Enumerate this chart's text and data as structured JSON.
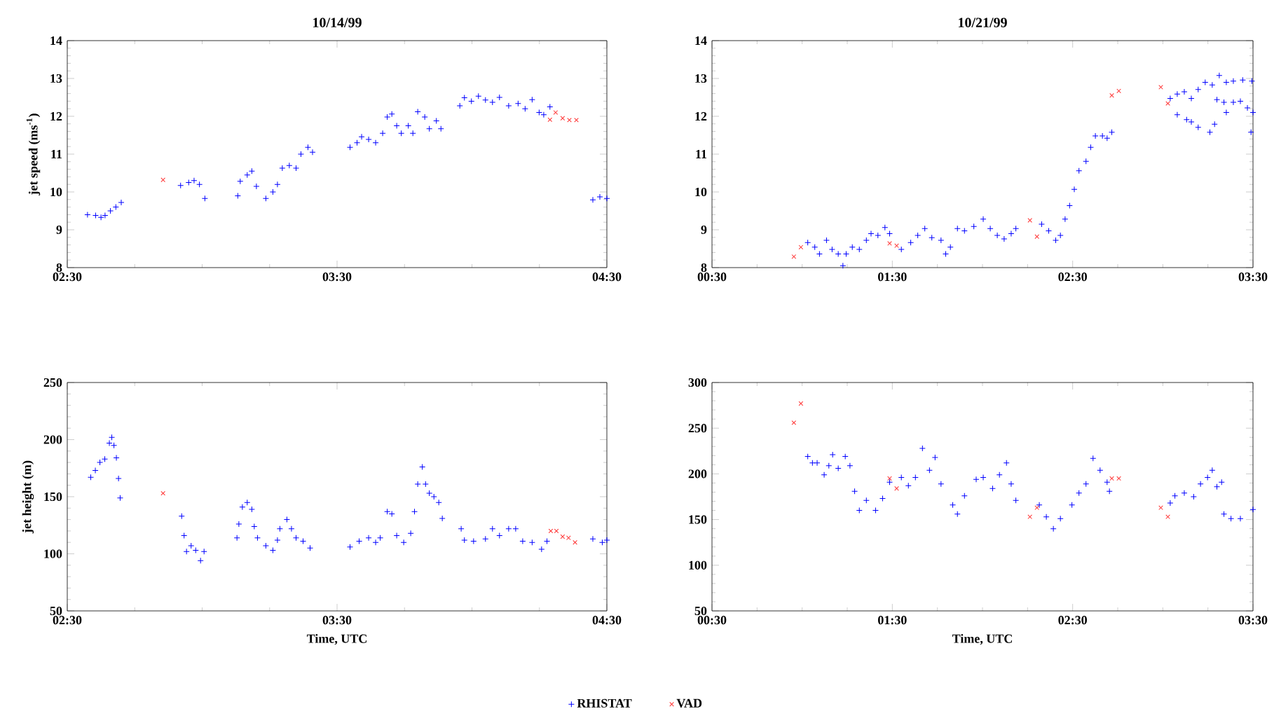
{
  "chart_data": [
    {
      "type": "scatter",
      "title": "10/14/99",
      "ylabel": "jet speed (ms$^{-1}$)",
      "xlim": [
        2.5,
        4.5
      ],
      "ylim": [
        8,
        14
      ],
      "grid": false,
      "xticks": [
        {
          "value": 2.5,
          "label": "02:30"
        },
        {
          "value": 3.5,
          "label": "03:30"
        },
        {
          "value": 4.5,
          "label": "04:30"
        }
      ],
      "yticks": [
        8,
        9,
        10,
        11,
        12,
        13,
        14
      ],
      "series": [
        {
          "color": "#0000ff",
          "marker": "plus",
          "x": [
            2.575,
            2.605,
            2.625,
            2.64,
            2.66,
            2.68,
            2.7,
            2.92,
            2.95,
            2.97,
            2.99,
            3.01,
            3.132,
            3.141,
            3.167,
            3.184,
            3.201,
            3.236,
            3.262,
            3.279,
            3.297,
            3.323,
            3.348,
            3.366,
            3.392,
            3.409,
            3.548,
            3.574,
            3.591,
            3.617,
            3.643,
            3.669,
            3.686,
            3.703,
            3.721,
            3.738,
            3.764,
            3.781,
            3.799,
            3.825,
            3.842,
            3.868,
            3.885,
            3.955,
            3.972,
            3.998,
            4.024,
            4.05,
            4.076,
            4.102,
            4.136,
            4.171,
            4.197,
            4.223,
            4.249,
            4.266,
            4.289,
            4.448,
            4.474,
            4.5
          ],
          "values": [
            9.4,
            9.38,
            9.33,
            9.38,
            9.5,
            9.6,
            9.72,
            10.17,
            10.25,
            10.3,
            10.2,
            9.83,
            9.9,
            10.28,
            10.45,
            10.55,
            10.15,
            9.83,
            10.0,
            10.2,
            10.63,
            10.7,
            10.63,
            11.0,
            11.18,
            11.05,
            11.18,
            11.3,
            11.46,
            11.39,
            11.3,
            11.55,
            11.98,
            12.06,
            11.75,
            11.55,
            11.75,
            11.55,
            12.12,
            11.98,
            11.67,
            11.88,
            11.67,
            12.28,
            12.49,
            12.4,
            12.53,
            12.43,
            12.37,
            12.5,
            12.28,
            12.34,
            12.2,
            12.44,
            12.1,
            12.04,
            12.25,
            9.79,
            9.87,
            9.83
          ]
        },
        {
          "color": "#ff3333",
          "marker": "cross",
          "x": [
            2.855,
            4.289,
            4.31,
            4.336,
            4.361,
            4.387
          ],
          "values": [
            10.32,
            11.91,
            12.1,
            11.95,
            11.9,
            11.9
          ]
        }
      ]
    },
    {
      "type": "scatter",
      "title": "10/21/99",
      "xlim": [
        0.5,
        3.5
      ],
      "ylim": [
        8,
        14
      ],
      "grid": false,
      "xticks": [
        {
          "value": 0.5,
          "label": "00:30"
        },
        {
          "value": 1.5,
          "label": "01:30"
        },
        {
          "value": 2.5,
          "label": "02:30"
        },
        {
          "value": 3.5,
          "label": "03:30"
        }
      ],
      "yticks": [
        8,
        9,
        10,
        11,
        12,
        13,
        14
      ],
      "series": [
        {
          "color": "#0000ff",
          "marker": "plus",
          "x": [
            1.031,
            1.07,
            1.096,
            1.135,
            1.166,
            1.2,
            1.226,
            1.244,
            1.278,
            1.317,
            1.356,
            1.382,
            1.42,
            1.459,
            1.485,
            1.55,
            1.602,
            1.641,
            1.68,
            1.719,
            1.77,
            1.796,
            1.822,
            1.861,
            1.9,
            1.952,
            2.004,
            2.043,
            2.082,
            2.12,
            2.159,
            2.185,
            2.328,
            2.367,
            2.406,
            2.432,
            2.458,
            2.483,
            2.509,
            2.535,
            2.574,
            2.6,
            2.626,
            2.665,
            2.691,
            2.717,
            3.041,
            3.08,
            3.119,
            3.158,
            3.196,
            3.235,
            3.274,
            3.313,
            3.352,
            3.391,
            3.443,
            3.494,
            3.08,
            3.132,
            3.158,
            3.196,
            3.261,
            3.287,
            3.3,
            3.339,
            3.352,
            3.391,
            3.43,
            3.469,
            3.489,
            3.5
          ],
          "values": [
            8.66,
            8.54,
            8.36,
            8.72,
            8.48,
            8.36,
            8.05,
            8.36,
            8.54,
            8.48,
            8.72,
            8.9,
            8.85,
            9.06,
            8.9,
            8.48,
            8.66,
            8.85,
            9.03,
            8.79,
            8.72,
            8.36,
            8.54,
            9.03,
            8.97,
            9.09,
            9.28,
            9.03,
            8.85,
            8.76,
            8.9,
            9.03,
            9.15,
            8.97,
            8.72,
            8.85,
            9.28,
            9.64,
            10.07,
            10.56,
            10.81,
            11.18,
            11.48,
            11.48,
            11.42,
            11.58,
            12.47,
            12.59,
            12.65,
            12.47,
            12.71,
            12.9,
            12.83,
            13.08,
            12.9,
            12.93,
            12.96,
            12.93,
            12.04,
            11.91,
            11.85,
            11.71,
            11.58,
            11.79,
            12.44,
            12.37,
            12.1,
            12.37,
            12.4,
            12.22,
            11.58,
            12.1
          ]
        },
        {
          "color": "#ff3333",
          "marker": "cross",
          "x": [
            0.954,
            0.993,
            1.485,
            1.524,
            2.263,
            2.302,
            2.717,
            2.756,
            2.989,
            3.028
          ],
          "values": [
            8.29,
            8.54,
            8.64,
            8.58,
            9.25,
            8.82,
            12.55,
            12.67,
            12.77,
            12.34
          ]
        }
      ]
    },
    {
      "type": "scatter",
      "ylabel": "jet height (m)",
      "xlabel": "Time, UTC",
      "xlim": [
        2.5,
        4.5
      ],
      "ylim": [
        50,
        250
      ],
      "grid": false,
      "xticks": [
        {
          "value": 2.5,
          "label": "02:30"
        },
        {
          "value": 3.5,
          "label": "03:30"
        },
        {
          "value": 4.5,
          "label": "04:30"
        }
      ],
      "yticks": [
        50,
        100,
        150,
        200,
        250
      ],
      "series": [
        {
          "color": "#0000ff",
          "marker": "plus",
          "x": [
            2.587,
            2.604,
            2.621,
            2.639,
            2.656,
            2.665,
            2.673,
            2.682,
            2.69,
            2.696,
            2.924,
            2.933,
            2.942,
            2.959,
            2.976,
            2.994,
            3.007,
            3.129,
            3.136,
            3.149,
            3.167,
            3.184,
            3.193,
            3.205,
            3.236,
            3.262,
            3.279,
            3.288,
            3.314,
            3.331,
            3.348,
            3.374,
            3.4,
            3.548,
            3.582,
            3.617,
            3.643,
            3.66,
            3.686,
            3.703,
            3.721,
            3.747,
            3.773,
            3.787,
            3.799,
            3.816,
            3.828,
            3.842,
            3.859,
            3.877,
            3.89,
            3.96,
            3.972,
            4.006,
            4.05,
            4.076,
            4.102,
            4.136,
            4.162,
            4.188,
            4.223,
            4.258,
            4.278,
            4.448,
            4.483,
            4.5
          ],
          "values": [
            167,
            173,
            180,
            183,
            197,
            202,
            195,
            184,
            166,
            149,
            133,
            116,
            102,
            107,
            103,
            94,
            102,
            114,
            126,
            141,
            145,
            139,
            124,
            114,
            107,
            103,
            112,
            122,
            130,
            122,
            114,
            111,
            105,
            106,
            111,
            114,
            110,
            114,
            137,
            135,
            116,
            110,
            118,
            137,
            161,
            176,
            161,
            153,
            150,
            145,
            131,
            122,
            112,
            111,
            113,
            122,
            116,
            122,
            122,
            111,
            110,
            104,
            111,
            113,
            110,
            112
          ]
        },
        {
          "color": "#ff3333",
          "marker": "cross",
          "x": [
            2.855,
            4.292,
            4.313,
            4.336,
            4.358,
            4.382
          ],
          "values": [
            153,
            120,
            120,
            115,
            114,
            110
          ]
        }
      ]
    },
    {
      "type": "scatter",
      "xlabel": "Time, UTC",
      "xlim": [
        0.5,
        3.5
      ],
      "ylim": [
        50,
        300
      ],
      "grid": false,
      "legend": "bottom",
      "xticks": [
        {
          "value": 0.5,
          "label": "00:30"
        },
        {
          "value": 1.5,
          "label": "01:30"
        },
        {
          "value": 2.5,
          "label": "02:30"
        },
        {
          "value": 3.5,
          "label": "03:30"
        }
      ],
      "yticks": [
        50,
        100,
        150,
        200,
        250,
        300
      ],
      "series": [
        {
          "name": "RHISTAT",
          "color": "#0000ff",
          "marker": "plus",
          "x": [
            1.031,
            1.057,
            1.083,
            1.122,
            1.148,
            1.169,
            1.2,
            1.239,
            1.265,
            1.291,
            1.317,
            1.356,
            1.407,
            1.446,
            1.485,
            1.55,
            1.589,
            1.628,
            1.667,
            1.706,
            1.737,
            1.77,
            1.835,
            1.861,
            1.9,
            1.965,
            2.004,
            2.056,
            2.094,
            2.133,
            2.159,
            2.185,
            2.315,
            2.354,
            2.393,
            2.432,
            2.496,
            2.535,
            2.574,
            2.613,
            2.652,
            2.691,
            2.704,
            3.041,
            3.067,
            3.119,
            3.171,
            3.209,
            3.248,
            3.274,
            3.3,
            3.326,
            3.339,
            3.378,
            3.43,
            3.5
          ],
          "values": [
            219,
            212,
            212,
            199,
            209,
            221,
            206,
            219,
            209,
            181,
            160,
            171,
            160,
            173,
            191,
            196,
            187,
            196,
            228,
            204,
            218,
            189,
            166,
            156,
            176,
            194,
            196,
            184,
            199,
            212,
            189,
            171,
            166,
            153,
            140,
            151,
            166,
            179,
            189,
            217,
            204,
            191,
            181,
            168,
            176,
            179,
            175,
            189,
            196,
            204,
            186,
            191,
            156,
            151,
            151,
            161
          ]
        },
        {
          "name": "VAD",
          "color": "#ff3333",
          "marker": "cross",
          "x": [
            0.954,
            0.993,
            1.485,
            1.524,
            2.263,
            2.302,
            2.717,
            2.756,
            2.989,
            3.028
          ],
          "values": [
            256,
            277,
            195,
            184,
            153,
            163,
            195,
            195,
            163,
            153
          ]
        }
      ]
    }
  ]
}
